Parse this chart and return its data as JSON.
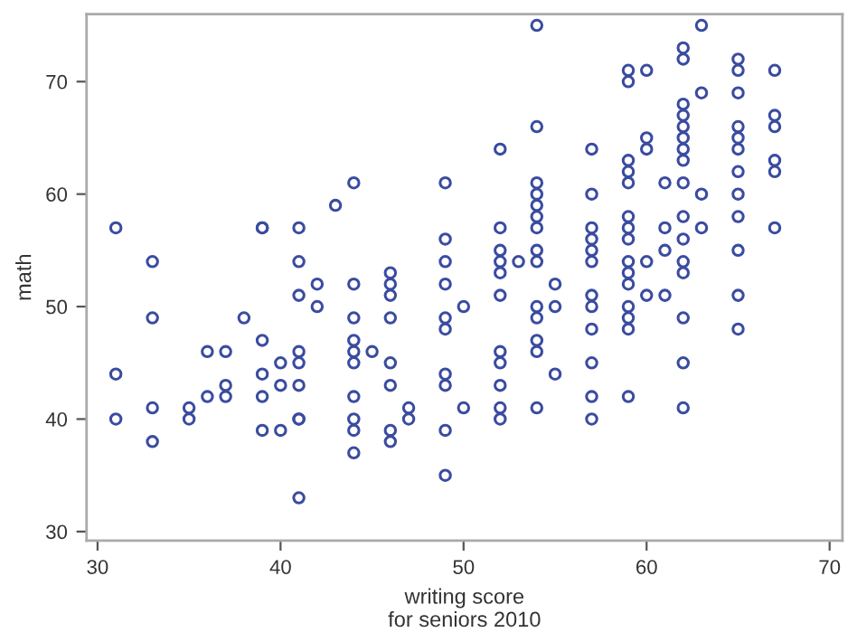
{
  "chart_data": {
    "type": "scatter",
    "xlabel": "writing score\nfor seniors 2010",
    "ylabel": "math",
    "xlim": [
      29.4,
      70.7
    ],
    "ylim": [
      29.2,
      76
    ],
    "xticks": [
      30,
      40,
      50,
      60,
      70
    ],
    "yticks": [
      30,
      40,
      50,
      60,
      70
    ],
    "grid": false,
    "marker": "circle",
    "series": [
      {
        "color": "#3a4ca0",
        "x": [
          31,
          31,
          31,
          33,
          33,
          33,
          33,
          35,
          35,
          36,
          36,
          37,
          37,
          37,
          38,
          39,
          39,
          39,
          39,
          39,
          39,
          40,
          40,
          40,
          41,
          41,
          41,
          41,
          41,
          41,
          41,
          41,
          41,
          42,
          42,
          43,
          44,
          44,
          44,
          44,
          44,
          44,
          44,
          44,
          44,
          44,
          45,
          46,
          46,
          46,
          46,
          46,
          46,
          46,
          46,
          47,
          47,
          49,
          49,
          49,
          49,
          49,
          49,
          49,
          49,
          49,
          49,
          50,
          50,
          52,
          52,
          52,
          52,
          52,
          52,
          52,
          52,
          52,
          52,
          52,
          53,
          54,
          54,
          54,
          54,
          54,
          54,
          54,
          54,
          54,
          54,
          54,
          54,
          54,
          54,
          55,
          55,
          55,
          57,
          57,
          57,
          57,
          57,
          57,
          57,
          57,
          57,
          57,
          57,
          57,
          59,
          59,
          59,
          59,
          59,
          59,
          59,
          59,
          59,
          59,
          59,
          59,
          59,
          59,
          59,
          60,
          60,
          60,
          60,
          60,
          61,
          61,
          61,
          61,
          62,
          62,
          62,
          62,
          62,
          62,
          62,
          62,
          62,
          62,
          62,
          62,
          62,
          62,
          62,
          62,
          63,
          63,
          63,
          63,
          65,
          65,
          65,
          65,
          65,
          65,
          65,
          65,
          65,
          65,
          65,
          65,
          67,
          67,
          67,
          67,
          67,
          67
        ],
        "values": [
          57,
          44,
          40,
          54,
          49,
          41,
          38,
          41,
          40,
          46,
          42,
          46,
          43,
          42,
          49,
          57,
          47,
          44,
          42,
          39,
          57,
          45,
          43,
          39,
          57,
          54,
          51,
          46,
          45,
          43,
          40,
          33,
          40,
          52,
          50,
          59,
          61,
          52,
          49,
          47,
          46,
          45,
          42,
          40,
          39,
          37,
          46,
          53,
          52,
          51,
          49,
          45,
          43,
          39,
          38,
          41,
          40,
          61,
          56,
          54,
          52,
          49,
          48,
          44,
          43,
          39,
          35,
          50,
          41,
          64,
          57,
          55,
          54,
          53,
          51,
          46,
          45,
          43,
          41,
          40,
          54,
          75,
          66,
          61,
          60,
          59,
          58,
          57,
          55,
          54,
          50,
          49,
          47,
          46,
          41,
          52,
          50,
          44,
          64,
          60,
          57,
          56,
          55,
          54,
          51,
          50,
          48,
          45,
          42,
          40,
          71,
          70,
          63,
          62,
          61,
          58,
          57,
          56,
          54,
          53,
          52,
          50,
          49,
          48,
          42,
          71,
          65,
          64,
          54,
          51,
          61,
          57,
          55,
          51,
          73,
          72,
          68,
          67,
          66,
          65,
          64,
          63,
          61,
          58,
          56,
          54,
          53,
          49,
          45,
          41,
          75,
          69,
          60,
          57,
          72,
          71,
          69,
          66,
          65,
          64,
          62,
          60,
          58,
          55,
          51,
          48,
          71,
          67,
          66,
          63,
          62,
          57
        ]
      }
    ]
  }
}
